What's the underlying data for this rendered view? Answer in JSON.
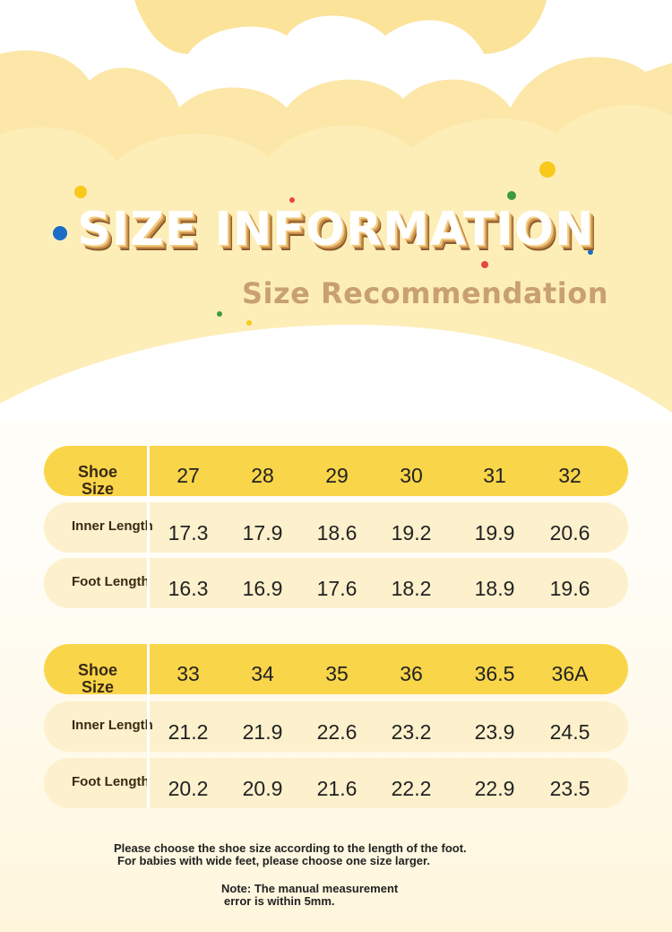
{
  "header": {
    "title": "SIZE INFORMATION",
    "subtitle": "Size Recommendation"
  },
  "tables": [
    {
      "header": {
        "label": "Shoe Size",
        "cells": [
          "27",
          "28",
          "29",
          "30",
          "31",
          "32"
        ]
      },
      "rows": [
        {
          "label": "Inner Length",
          "cells": [
            "17.3",
            "17.9",
            "18.6",
            "19.2",
            "19.9",
            "20.6"
          ]
        },
        {
          "label": "Foot Length",
          "cells": [
            "16.3",
            "16.9",
            "17.6",
            "18.2",
            "18.9",
            "19.6"
          ]
        }
      ]
    },
    {
      "header": {
        "label": "Shoe Size",
        "cells": [
          "33",
          "34",
          "35",
          "36",
          "36.5",
          "36A"
        ]
      },
      "rows": [
        {
          "label": "Inner Length",
          "cells": [
            "21.2",
            "21.9",
            "22.6",
            "23.2",
            "23.9",
            "24.5"
          ]
        },
        {
          "label": "Foot Length",
          "cells": [
            "20.2",
            "20.9",
            "21.6",
            "22.2",
            "22.9",
            "23.5"
          ]
        }
      ]
    }
  ],
  "notes": [
    "Please choose the shoe size according to the length of the foot.",
    "For babies with wide feet, please choose one size larger.",
    "Note: The manual measurement",
    "error is within 5mm."
  ]
}
